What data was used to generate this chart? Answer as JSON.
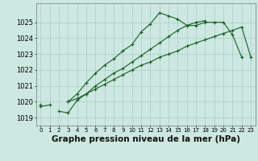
{
  "x": [
    0,
    1,
    2,
    3,
    4,
    5,
    6,
    7,
    8,
    9,
    10,
    11,
    12,
    13,
    14,
    15,
    16,
    17,
    18,
    19,
    20,
    21,
    22,
    23
  ],
  "series1": [
    1019.8,
    null,
    null,
    1020.0,
    1020.5,
    1021.2,
    1021.8,
    1022.3,
    1022.7,
    1023.2,
    1023.6,
    1024.4,
    1024.9,
    1025.6,
    1025.4,
    1025.2,
    1024.8,
    1024.8,
    1025.0,
    1025.0,
    1025.0,
    1024.2,
    1022.8,
    null
  ],
  "series2": [
    null,
    null,
    1019.4,
    1019.3,
    1020.1,
    1020.5,
    1021.0,
    1021.4,
    1021.8,
    1022.1,
    1022.5,
    1022.9,
    1023.3,
    1023.7,
    1024.1,
    1024.5,
    1024.8,
    1025.0,
    1025.1,
    null,
    null,
    null,
    null,
    null
  ],
  "series3": [
    1019.7,
    1019.8,
    null,
    1020.0,
    1020.2,
    1020.5,
    1020.8,
    1021.1,
    1021.4,
    1021.7,
    1022.0,
    1022.3,
    1022.5,
    1022.8,
    1023.0,
    1023.2,
    1023.5,
    1023.7,
    1023.9,
    1024.1,
    1024.3,
    1024.5,
    1024.7,
    1022.8
  ],
  "bg_color": "#cce8e0",
  "grid_color": "#aacccc",
  "line_color": "#1a5c28",
  "ylim": [
    1018.5,
    1026.2
  ],
  "xlim": [
    -0.5,
    23.5
  ],
  "yticks": [
    1019,
    1020,
    1021,
    1022,
    1023,
    1024,
    1025
  ],
  "xtick_labels": [
    "0",
    "1",
    "2",
    "3",
    "4",
    "5",
    "6",
    "7",
    "8",
    "9",
    "10",
    "11",
    "12",
    "13",
    "14",
    "15",
    "16",
    "17",
    "18",
    "19",
    "20",
    "21",
    "22",
    "23"
  ],
  "xlabel": "Graphe pression niveau de la mer (hPa)",
  "xlabel_fontsize": 7.5,
  "ytick_fontsize": 6,
  "xtick_fontsize": 5
}
